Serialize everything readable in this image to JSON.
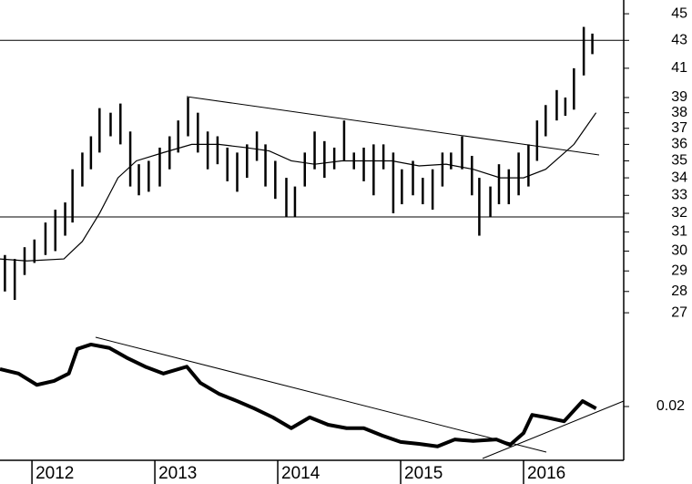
{
  "chart_data": [
    {
      "type": "ohlc",
      "log_scale": true,
      "xlim": [
        2011.74,
        2016.815
      ],
      "ylim": [
        26.3,
        46.07
      ],
      "yticks": [
        45,
        43,
        41,
        39,
        38,
        37,
        36,
        35,
        34,
        33,
        32,
        31,
        30,
        29,
        28,
        27
      ],
      "levels": [
        43,
        31.8
      ],
      "x": [
        2011.78,
        2011.86,
        2011.94,
        2012.02,
        2012.11,
        2012.19,
        2012.27,
        2012.33,
        2012.41,
        2012.48,
        2012.55,
        2012.64,
        2012.72,
        2012.8,
        2012.87,
        2012.95,
        2013.04,
        2013.12,
        2013.19,
        2013.27,
        2013.35,
        2013.43,
        2013.51,
        2013.59,
        2013.67,
        2013.75,
        2013.83,
        2013.9,
        2013.98,
        2014.07,
        2014.14,
        2014.22,
        2014.3,
        2014.38,
        2014.46,
        2014.54,
        2014.62,
        2014.7,
        2014.78,
        2014.86,
        2014.94,
        2015.01,
        2015.1,
        2015.18,
        2015.26,
        2015.34,
        2015.41,
        2015.5,
        2015.58,
        2015.64,
        2015.73,
        2015.8,
        2015.88,
        2015.96,
        2016.04,
        2016.11,
        2016.18,
        2016.27,
        2016.34,
        2016.41,
        2016.49,
        2016.56
      ],
      "high": [
        29.8,
        29.6,
        30.2,
        30.6,
        31.5,
        32.2,
        32.6,
        34.5,
        35.5,
        36.5,
        38.3,
        38.0,
        38.6,
        36.8,
        34.8,
        35.0,
        35.8,
        36.5,
        37.5,
        39.0,
        38.0,
        36.8,
        36.5,
        35.8,
        35.5,
        36.0,
        36.8,
        36.0,
        35.0,
        34.0,
        33.5,
        35.5,
        36.8,
        36.2,
        35.8,
        37.5,
        35.5,
        35.8,
        36.0,
        36.0,
        35.5,
        34.5,
        35.0,
        34.0,
        34.5,
        35.5,
        35.5,
        36.5,
        35.3,
        34.0,
        33.5,
        34.8,
        34.5,
        35.5,
        36.0,
        37.5,
        38.5,
        39.5,
        39.0,
        41.0,
        44.0,
        43.5
      ],
      "low": [
        28.0,
        27.6,
        28.8,
        29.4,
        29.8,
        30.0,
        30.8,
        31.5,
        33.5,
        34.5,
        35.5,
        36.5,
        36.0,
        33.5,
        33.0,
        33.2,
        33.5,
        34.5,
        35.5,
        36.5,
        35.5,
        34.5,
        34.8,
        33.8,
        33.2,
        34.0,
        35.0,
        33.5,
        32.8,
        31.8,
        31.8,
        33.5,
        34.5,
        34.0,
        34.5,
        35.0,
        34.5,
        33.8,
        33.0,
        34.5,
        32.0,
        32.5,
        33.0,
        32.5,
        32.2,
        33.5,
        34.5,
        34.5,
        33.0,
        30.8,
        31.8,
        32.5,
        32.5,
        33.0,
        33.5,
        35.0,
        36.5,
        37.5,
        37.8,
        38.2,
        40.5,
        42.0
      ],
      "average": {
        "x": [
          2011.74,
          2011.96,
          2012.26,
          2012.41,
          2012.55,
          2012.7,
          2012.85,
          2013.07,
          2013.3,
          2013.52,
          2013.74,
          2013.93,
          2014.11,
          2014.3,
          2014.52,
          2014.74,
          2014.93,
          2015.15,
          2015.37,
          2015.59,
          2015.81,
          2016.0,
          2016.18,
          2016.41,
          2016.59
        ],
        "values": [
          29.6,
          29.5,
          29.6,
          30.5,
          32.0,
          34.0,
          35.0,
          35.5,
          36.0,
          36.0,
          35.8,
          35.6,
          35.0,
          34.8,
          35.0,
          35.0,
          35.0,
          34.7,
          34.8,
          34.5,
          34.0,
          34.0,
          34.5,
          36.0,
          38.0
        ]
      }
    },
    {
      "type": "line",
      "xlim": [
        2011.74,
        2016.815
      ],
      "ylim": [
        0.01,
        0.035
      ],
      "yticks": [
        0.02
      ],
      "xticks": [
        2012,
        2013,
        2014,
        2015,
        2016
      ],
      "x": [
        2011.74,
        2011.89,
        2012.04,
        2012.18,
        2012.3,
        2012.37,
        2012.48,
        2012.63,
        2012.78,
        2012.93,
        2013.07,
        2013.26,
        2013.37,
        2013.52,
        2013.67,
        2013.81,
        2013.96,
        2014.11,
        2014.26,
        2014.41,
        2014.56,
        2014.7,
        2014.85,
        2015.0,
        2015.15,
        2015.3,
        2015.44,
        2015.59,
        2015.78,
        2015.89,
        2016.0,
        2016.07,
        2016.18,
        2016.33,
        2016.48,
        2016.59
      ],
      "values": [
        0.0276,
        0.0267,
        0.0244,
        0.0252,
        0.0267,
        0.0317,
        0.0326,
        0.0319,
        0.0298,
        0.028,
        0.0267,
        0.0281,
        0.0248,
        0.0226,
        0.0211,
        0.0196,
        0.0178,
        0.0156,
        0.0178,
        0.0163,
        0.0156,
        0.0156,
        0.0141,
        0.0128,
        0.0124,
        0.0119,
        0.0133,
        0.013,
        0.0133,
        0.0122,
        0.0146,
        0.0183,
        0.0178,
        0.017,
        0.0211,
        0.0196
      ]
    }
  ]
}
